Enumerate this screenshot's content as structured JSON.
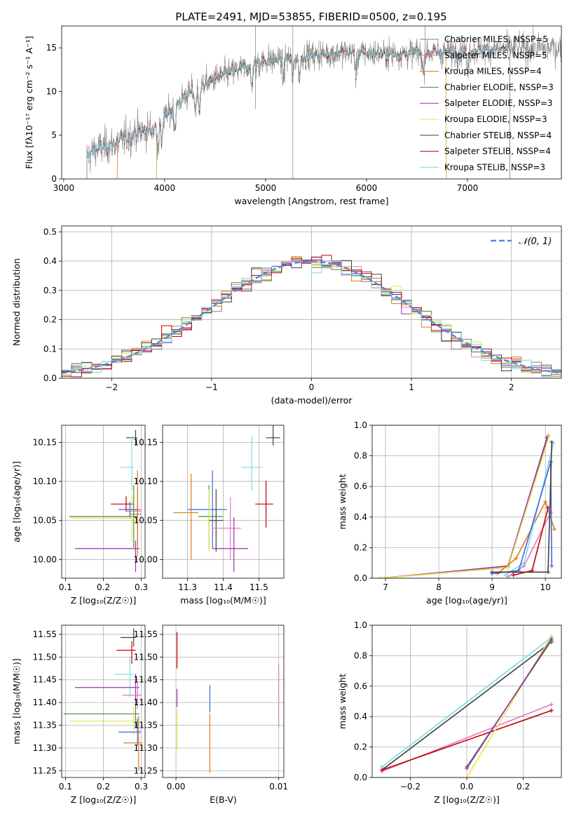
{
  "figure": {
    "title": "PLATE=2491, MJD=53855, FIBERID=0500, z=0.195"
  },
  "colors": {
    "Chabrier MILES": "#808080",
    "Salpeter MILES": "#e377c2",
    "Kroupa MILES": "#e07b1a",
    "Chabrier ELODIE": "#4a8c3a",
    "Salpeter ELODIE": "#9b30b0",
    "Kroupa ELODIE": "#e6e64a",
    "Chabrier STELIB": "#404040",
    "Salpeter STELIB": "#c00000",
    "Kroupa STELIB": "#7fd8e6",
    "normal_curve": "#5588dd",
    "extra_blue": "#4466dd"
  },
  "chart_data": [
    {
      "id": "spectrum",
      "type": "line",
      "title": "PLATE=2491, MJD=53855, FIBERID=0500, z=0.195",
      "xlabel": "wavelength [Angstrom, rest frame]",
      "ylabel": "Flux [f$_\\lambda$10$^{-17}$ erg cm$^{-2}$ s$^{-1}$ A$^{-1}$]",
      "ylabel_display": "Flux [fλ10⁻¹⁷ erg cm⁻² s⁻¹ A⁻¹]",
      "xlim": [
        2980,
        7930
      ],
      "ylim": [
        0,
        17.5
      ],
      "xticks": [
        3000,
        4000,
        5000,
        6000,
        7000
      ],
      "yticks": [
        0,
        5,
        10,
        15
      ],
      "grid": false,
      "legend_position": "top-right",
      "continuum_knots": {
        "x": [
          3230,
          3300,
          3500,
          3700,
          3900,
          4000,
          4200,
          4500,
          4800,
          5000,
          5200,
          5500,
          5800,
          6000,
          6300,
          6600,
          6800,
          7000,
          7200,
          7400,
          7600,
          7800,
          7930
        ],
        "y": [
          2.5,
          3.3,
          4.0,
          5.2,
          5.8,
          7.0,
          9.5,
          11.5,
          12.8,
          13.5,
          13.8,
          14.2,
          14.5,
          14.4,
          14.3,
          14.5,
          14.5,
          14.7,
          14.8,
          14.9,
          14.9,
          15.0,
          15.0
        ]
      },
      "series": [
        {
          "name": "Chabrier MILES",
          "nssp": 5,
          "start": 3230,
          "end": 7930
        },
        {
          "name": "Salpeter MILES",
          "nssp": 5,
          "start": 3530,
          "end": 7420
        },
        {
          "name": "Kroupa MILES",
          "nssp": 4,
          "start": 3530,
          "end": 7420
        },
        {
          "name": "Chabrier ELODIE",
          "nssp": 3,
          "start": 3920,
          "end": 6790
        },
        {
          "name": "Salpeter ELODIE",
          "nssp": 3,
          "start": 3920,
          "end": 6790
        },
        {
          "name": "Kroupa ELODIE",
          "nssp": 3,
          "start": 3920,
          "end": 6790
        },
        {
          "name": "Chabrier STELIB",
          "nssp": 4,
          "start": 3230,
          "end": 7420
        },
        {
          "name": "Salpeter STELIB",
          "nssp": 4,
          "start": 3230,
          "end": 7420
        },
        {
          "name": "Kroupa STELIB",
          "nssp": 3,
          "start": 3230,
          "end": 7420
        }
      ],
      "legend_labels": [
        "Chabrier MILES, N$_{SSP}$=5",
        "Salpeter MILES, N$_{SSP}$=5",
        "Kroupa MILES, N$_{SSP}$=4",
        "Chabrier ELODIE, N$_{SSP}$=3",
        "Salpeter ELODIE, N$_{SSP}$=3",
        "Kroupa ELODIE, N$_{SSP}$=3",
        "Chabrier STELIB, N$_{SSP}$=4",
        "Salpeter STELIB, N$_{SSP}$=4",
        "Kroupa STELIB, N$_{SSP}$=3"
      ],
      "legend_display": [
        "Chabrier MILES, NSSP=5",
        "Salpeter MILES, NSSP=5",
        "Kroupa MILES, NSSP=4",
        "Chabrier ELODIE, NSSP=3",
        "Salpeter ELODIE, NSSP=3",
        "Kroupa ELODIE, NSSP=3",
        "Chabrier STELIB, NSSP=4",
        "Salpeter STELIB, NSSP=4",
        "Kroupa STELIB, NSSP=3"
      ]
    },
    {
      "id": "residuals",
      "type": "line",
      "xlabel": "(data-model)/error",
      "ylabel": "Normed distribution",
      "xlim": [
        -2.5,
        2.5
      ],
      "ylim": [
        0,
        0.52
      ],
      "xticks": [
        -2,
        -1,
        0,
        1,
        2
      ],
      "yticks": [
        0.0,
        0.1,
        0.2,
        0.3,
        0.4,
        0.5
      ],
      "grid": true,
      "legend_position": "top-right",
      "legend_label": "$\\mathcal{N}(0,1)$",
      "legend_display": "𝒩(0, 1)",
      "bin_width": 0.1,
      "bin_edges": [
        -2.5,
        2.5
      ]
    },
    {
      "id": "age_vs_Z",
      "type": "scatter",
      "xlabel": "Z [log$_{10}$(Z/Z$_\\odot$)]",
      "xlabel_display": "Z [log₁₀(Z/Z☉)]",
      "ylabel": "age  [log$_{10}$(age/yr)]",
      "ylabel_display": "age  [log₁₀(age/yr)]",
      "xlim": [
        0.09,
        0.31
      ],
      "ylim": [
        9.976,
        10.172
      ],
      "xticks": [
        0.1,
        0.2,
        0.3
      ],
      "yticks": [
        10.0,
        10.05,
        10.1,
        10.15
      ],
      "grid": true,
      "points": [
        {
          "series": "Chabrier STELIB",
          "x": 0.285,
          "y": 10.156,
          "xerr": [
            0.025,
            0.005
          ],
          "yerr": [
            0.01,
            0.01
          ]
        },
        {
          "series": "Kroupa STELIB",
          "x": 0.275,
          "y": 10.118,
          "xerr": [
            0.03,
            0.005
          ],
          "yerr": [
            0.03,
            0.04
          ]
        },
        {
          "series": "Salpeter STELIB",
          "x": 0.26,
          "y": 10.071,
          "xerr": [
            0.04,
            0.02
          ],
          "yerr": [
            0.01,
            0.01
          ]
        },
        {
          "series": "Salpeter MILES",
          "x": 0.29,
          "y": 10.062,
          "xerr": [
            0.03,
            0.01
          ],
          "yerr": [
            0.03,
            0.03
          ]
        },
        {
          "series": "Chabrier MILES",
          "x": 0.29,
          "y": 10.058,
          "xerr": [
            0.02,
            0.01
          ],
          "yerr": [
            0.04,
            0.03
          ]
        },
        {
          "series": "Chabrier ELODIE",
          "x": 0.28,
          "y": 10.055,
          "xerr": [
            0.17,
            0.01
          ],
          "yerr": [
            0.04,
            0.04
          ]
        },
        {
          "series": "Kroupa ELODIE",
          "x": 0.275,
          "y": 10.053,
          "xerr": [
            0.16,
            0.01
          ],
          "yerr": [
            0.03,
            0.03
          ]
        },
        {
          "series": "Kroupa MILES",
          "x": 0.29,
          "y": 10.064,
          "xerr": [
            0.03,
            0.01
          ],
          "yerr": [
            0.06,
            0.05
          ]
        },
        {
          "series": "extra_blue",
          "x": 0.27,
          "y": 10.064,
          "xerr": [
            0.03,
            0.02
          ],
          "yerr": [
            0.01,
            0.01
          ]
        },
        {
          "series": "Salpeter ELODIE",
          "x": 0.285,
          "y": 10.014,
          "xerr": [
            0.16,
            0.01
          ],
          "yerr": [
            0.03,
            0.01
          ]
        }
      ]
    },
    {
      "id": "age_vs_mass",
      "type": "scatter",
      "xlabel": "mass [log$_{10}$(M/M$_\\odot$)]",
      "xlabel_display": "mass [log₁₀(M/M☉)]",
      "ylabel": "",
      "xlim": [
        11.23,
        11.57
      ],
      "ylim": [
        9.976,
        10.172
      ],
      "xticks": [
        11.3,
        11.4,
        11.5
      ],
      "yticks": [
        10.0,
        10.05,
        10.1,
        10.15
      ],
      "grid": true,
      "points": [
        {
          "series": "Chabrier STELIB",
          "x": 11.54,
          "y": 10.156,
          "xerr": [
            0.02,
            0.02
          ],
          "yerr": [
            0.01,
            0.02
          ]
        },
        {
          "series": "Kroupa STELIB",
          "x": 11.48,
          "y": 10.118,
          "xerr": [
            0.03,
            0.03
          ],
          "yerr": [
            0.03,
            0.04
          ]
        },
        {
          "series": "Salpeter STELIB",
          "x": 11.52,
          "y": 10.071,
          "xerr": [
            0.03,
            0.02
          ],
          "yerr": [
            0.03,
            0.03
          ]
        },
        {
          "series": "Kroupa MILES",
          "x": 11.31,
          "y": 10.06,
          "xerr": [
            0.05,
            0.02
          ],
          "yerr": [
            0.06,
            0.05
          ]
        },
        {
          "series": "extra_blue",
          "x": 11.37,
          "y": 10.064,
          "xerr": [
            0.07,
            0.04
          ],
          "yerr": [
            0.05,
            0.05
          ]
        },
        {
          "series": "Chabrier ELODIE",
          "x": 11.36,
          "y": 10.055,
          "xerr": [
            0.03,
            0.04
          ],
          "yerr": [
            0.04,
            0.04
          ]
        },
        {
          "series": "Kroupa ELODIE",
          "x": 11.36,
          "y": 10.05,
          "xerr": [
            0.02,
            0.02
          ],
          "yerr": [
            0.04,
            0.04
          ]
        },
        {
          "series": "Chabrier STELIB",
          "x": 11.38,
          "y": 10.05,
          "xerr": [
            0.02,
            0.02
          ],
          "yerr": [
            0.04,
            0.04
          ]
        },
        {
          "series": "Salpeter MILES",
          "x": 11.42,
          "y": 10.04,
          "xerr": [
            0.05,
            0.03
          ],
          "yerr": [
            0.04,
            0.04
          ]
        },
        {
          "series": "Salpeter ELODIE",
          "x": 11.43,
          "y": 10.014,
          "xerr": [
            0.06,
            0.04
          ],
          "yerr": [
            0.03,
            0.04
          ]
        }
      ]
    },
    {
      "id": "mass_weight_vs_age",
      "type": "line",
      "xlabel": "age  [log$_{10}$(age/yr)]",
      "xlabel_display": "age  [log₁₀(age/yr)]",
      "ylabel": "mass weight",
      "xlim": [
        6.75,
        10.3
      ],
      "ylim": [
        0,
        1.0
      ],
      "xticks": [
        7,
        8,
        9,
        10
      ],
      "yticks": [
        0.0,
        0.2,
        0.4,
        0.6,
        0.8,
        1.0
      ],
      "grid": true,
      "series": [
        {
          "name": "Chabrier ELODIE",
          "x": [
            6.9,
            9.3,
            10.05
          ],
          "y": [
            0.0,
            0.07,
            0.93
          ]
        },
        {
          "name": "Salpeter ELODIE",
          "x": [
            6.9,
            9.3,
            10.03
          ],
          "y": [
            0.0,
            0.08,
            0.92
          ]
        },
        {
          "name": "Kroupa ELODIE",
          "x": [
            6.9,
            9.3,
            10.07
          ],
          "y": [
            0.0,
            0.07,
            0.93
          ]
        },
        {
          "name": "Kroupa MILES",
          "x": [
            9.1,
            9.45,
            10.0,
            10.17
          ],
          "y": [
            0.03,
            0.13,
            0.5,
            0.32
          ]
        },
        {
          "name": "Salpeter MILES",
          "x": [
            9.3,
            9.6,
            10.1
          ],
          "y": [
            0.01,
            0.08,
            0.43
          ]
        },
        {
          "name": "Kroupa STELIB",
          "x": [
            9.25,
            9.6,
            10.15
          ],
          "y": [
            0.02,
            0.1,
            0.88
          ]
        },
        {
          "name": "extra_blue",
          "x": [
            9.0,
            9.5,
            10.1,
            10.12
          ],
          "y": [
            0.03,
            0.05,
            0.76,
            0.08
          ]
        },
        {
          "name": "Chabrier STELIB",
          "x": [
            9.0,
            10.05,
            10.12
          ],
          "y": [
            0.04,
            0.04,
            0.89
          ]
        },
        {
          "name": "Salpeter STELIB",
          "x": [
            9.4,
            9.75,
            10.05
          ],
          "y": [
            0.02,
            0.05,
            0.46
          ]
        }
      ]
    },
    {
      "id": "mass_vs_Z",
      "type": "scatter",
      "xlabel": "Z [log$_{10}$(Z/Z$_\\odot$)]",
      "xlabel_display": "Z [log₁₀(Z/Z☉)]",
      "ylabel": "mass [log$_{10}$(M/M$_\\odot$)]",
      "ylabel_display": "mass [log₁₀(M/M☉)]",
      "xlim": [
        0.09,
        0.31
      ],
      "ylim": [
        11.235,
        11.57
      ],
      "xticks": [
        0.1,
        0.2,
        0.3
      ],
      "yticks": [
        11.25,
        11.3,
        11.35,
        11.4,
        11.45,
        11.5,
        11.55
      ],
      "grid": true,
      "points": [
        {
          "series": "Chabrier STELIB",
          "x": 0.28,
          "y": 11.543,
          "xerr": [
            0.035,
            0.005
          ],
          "yerr": [
            0.02,
            0.02
          ]
        },
        {
          "series": "Salpeter STELIB",
          "x": 0.275,
          "y": 11.515,
          "xerr": [
            0.04,
            0.01
          ],
          "yerr": [
            0.03,
            0.02
          ]
        },
        {
          "series": "Kroupa STELIB",
          "x": 0.27,
          "y": 11.462,
          "xerr": [
            0.04,
            0.01
          ],
          "yerr": [
            0.05,
            0.04
          ]
        },
        {
          "series": "Salpeter ELODIE",
          "x": 0.285,
          "y": 11.433,
          "xerr": [
            0.16,
            0.01
          ],
          "yerr": [
            0.03,
            0.03
          ]
        },
        {
          "series": "Salpeter MILES",
          "x": 0.29,
          "y": 11.416,
          "xerr": [
            0.04,
            0.01
          ],
          "yerr": [
            0.03,
            0.03
          ]
        },
        {
          "series": "Chabrier ELODIE",
          "x": 0.285,
          "y": 11.375,
          "xerr": [
            0.19,
            0.01
          ],
          "yerr": [
            0.03,
            0.03
          ]
        },
        {
          "series": "Kroupa ELODIE",
          "x": 0.28,
          "y": 11.359,
          "xerr": [
            0.17,
            0.01
          ],
          "yerr": [
            0.03,
            0.03
          ]
        },
        {
          "series": "extra_blue",
          "x": 0.29,
          "y": 11.335,
          "xerr": [
            0.05,
            0.01
          ],
          "yerr": [
            0.03,
            0.03
          ]
        },
        {
          "series": "Kroupa MILES",
          "x": 0.293,
          "y": 11.311,
          "xerr": [
            0.04,
            0.01
          ],
          "yerr": [
            0.06,
            0.06
          ]
        }
      ]
    },
    {
      "id": "mass_vs_ebv",
      "type": "scatter",
      "xlabel": "E(B-V)",
      "ylabel": "",
      "xlim": [
        -0.0013,
        0.0105
      ],
      "ylim": [
        11.235,
        11.57
      ],
      "xticks": [
        0.0,
        0.01
      ],
      "yticks": [
        11.25,
        11.3,
        11.35,
        11.4,
        11.45,
        11.5,
        11.55
      ],
      "grid": true,
      "points": [
        {
          "series": "Salpeter STELIB",
          "x": 0.0001,
          "y": 11.515,
          "xerr": [
            0,
            0
          ],
          "yerr": [
            0.04,
            0.04
          ]
        },
        {
          "series": "Salpeter ELODIE",
          "x": 0.0001,
          "y": 11.41,
          "xerr": [
            0,
            0
          ],
          "yerr": [
            0.02,
            0.02
          ]
        },
        {
          "series": "Kroupa ELODIE",
          "x": 0.0001,
          "y": 11.34,
          "xerr": [
            0,
            0
          ],
          "yerr": [
            0.045,
            0.045
          ]
        },
        {
          "series": "extra_blue",
          "x": 0.0033,
          "y": 11.408,
          "xerr": [
            0,
            0
          ],
          "yerr": [
            0.03,
            0.03
          ]
        },
        {
          "series": "Kroupa MILES",
          "x": 0.0033,
          "y": 11.31,
          "xerr": [
            0,
            0
          ],
          "yerr": [
            0.065,
            0.065
          ]
        },
        {
          "series": "Salpeter MILES",
          "x": 0.01,
          "y": 11.415,
          "xerr": [
            0,
            0
          ],
          "yerr": [
            0.07,
            0.07
          ]
        }
      ]
    },
    {
      "id": "mass_weight_vs_Z",
      "type": "line",
      "xlabel": "Z [log$_{10}$(Z/Z$_\\odot$)]",
      "xlabel_display": "Z [log₁₀(Z/Z☉)]",
      "ylabel": "mass weight",
      "xlim": [
        -0.335,
        0.335
      ],
      "ylim": [
        0,
        1.0
      ],
      "xticks": [
        -0.2,
        0.0,
        0.2
      ],
      "yticks": [
        0.0,
        0.2,
        0.4,
        0.6,
        0.8,
        1.0
      ],
      "grid": true,
      "series": [
        {
          "name": "Kroupa STELIB",
          "x": [
            -0.3,
            0.3
          ],
          "y": [
            0.07,
            0.92
          ]
        },
        {
          "name": "Chabrier STELIB",
          "x": [
            -0.3,
            0.3
          ],
          "y": [
            0.05,
            0.89
          ]
        },
        {
          "name": "Salpeter MILES",
          "x": [
            -0.3,
            0.3
          ],
          "y": [
            0.04,
            0.48
          ]
        },
        {
          "name": "Salpeter STELIB",
          "x": [
            -0.3,
            0.3
          ],
          "y": [
            0.05,
            0.44
          ]
        },
        {
          "name": "Kroupa ELODIE",
          "x": [
            0.0,
            0.3
          ],
          "y": [
            0.0,
            0.93
          ]
        },
        {
          "name": "Chabrier ELODIE",
          "x": [
            0.0,
            0.3
          ],
          "y": [
            0.07,
            0.9
          ]
        },
        {
          "name": "Salpeter ELODIE",
          "x": [
            0.0,
            0.3
          ],
          "y": [
            0.06,
            0.91
          ]
        }
      ]
    }
  ]
}
